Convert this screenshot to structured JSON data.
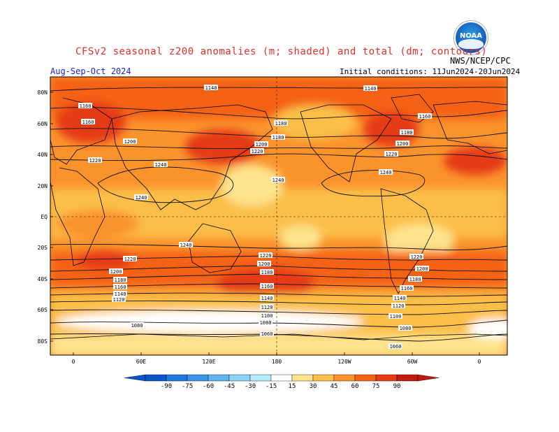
{
  "header": {
    "title": "CFSv2 seasonal z200 anomalies (m; shaded) and total (dm; contours)",
    "agency": "NWS/NCEP/CPC",
    "period": "Aug-Sep-Oct 2024",
    "initial_conditions": "Initial conditions: 11Jun2024-20Jun2024",
    "logo_text": "NOAA"
  },
  "colors": {
    "ocean_band_white": "#ffffff",
    "c15": "#fde38c",
    "c30": "#fbbf4a",
    "c45": "#fb932d",
    "c60": "#f56216",
    "c75": "#e53a12",
    "c90": "#c11a10",
    "neg15": "#b3ecfb",
    "neg30": "#8dd2f5",
    "neg45": "#5fb3ef",
    "neg60": "#3d95e8",
    "neg75": "#1f78dc",
    "neg90": "#0a56c8",
    "title_red": "#e0302a",
    "period_blue": "#2020d0"
  },
  "map": {
    "lat_labels": [
      "80N",
      "60N",
      "40N",
      "20N",
      "EQ",
      "20S",
      "40S",
      "60S",
      "80S"
    ],
    "lon_labels": [
      "0",
      "60E",
      "120E",
      "180",
      "120W",
      "60W",
      "0"
    ],
    "contour_labels": [
      "1140",
      "1140",
      "1160",
      "1160",
      "1160",
      "1180",
      "1180",
      "1180",
      "1200",
      "1200",
      "1200",
      "1220",
      "1220",
      "1220",
      "1240",
      "1240",
      "1240",
      "1240",
      "1240",
      "1220",
      "1220",
      "1220",
      "1200",
      "1200",
      "1200",
      "1180",
      "1180",
      "1180",
      "1160",
      "1160",
      "1160",
      "1140",
      "1140",
      "1140",
      "1120",
      "1120",
      "1120",
      "1100",
      "1100",
      "1080",
      "1080",
      "1080",
      "1060",
      "1060"
    ]
  },
  "colorbar": {
    "labels": [
      "-90",
      "-75",
      "-60",
      "-45",
      "-30",
      "-15",
      "15",
      "30",
      "45",
      "60",
      "75",
      "90"
    ]
  }
}
